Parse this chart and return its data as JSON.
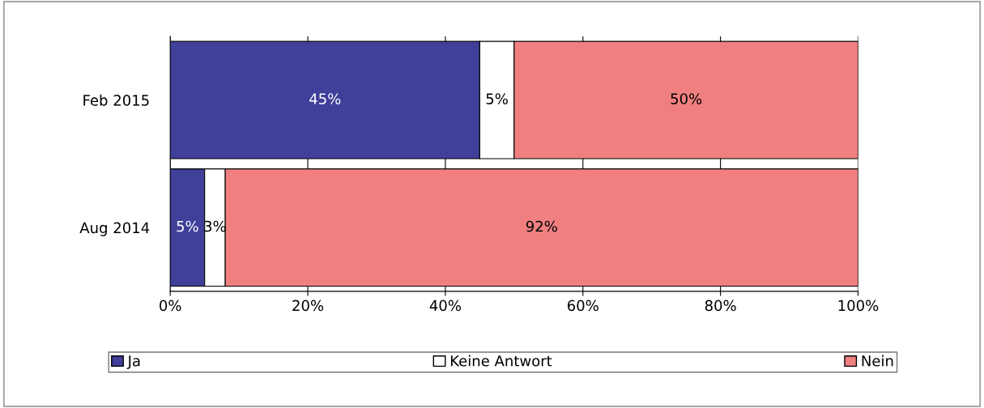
{
  "chart_data": {
    "type": "bar",
    "orientation": "horizontal",
    "stacked": true,
    "categories": [
      "Feb 2015",
      "Aug 2014"
    ],
    "series": [
      {
        "name": "Ja",
        "color": "#40409a",
        "values": [
          45,
          5
        ],
        "value_labels": [
          "45%",
          "5%"
        ]
      },
      {
        "name": "Keine Antwort",
        "color": "#ffffff",
        "values": [
          5,
          3
        ],
        "value_labels": [
          "5%",
          "3%"
        ]
      },
      {
        "name": "Nein",
        "color": "#f08080",
        "values": [
          50,
          92
        ],
        "value_labels": [
          "50%",
          "92%"
        ]
      }
    ],
    "xlim": [
      0,
      100
    ],
    "xticks": [
      {
        "value": 0,
        "label": "0%"
      },
      {
        "value": 20,
        "label": "20%"
      },
      {
        "value": 40,
        "label": "40%"
      },
      {
        "value": 60,
        "label": "60%"
      },
      {
        "value": 80,
        "label": "80%"
      },
      {
        "value": 100,
        "label": "100%"
      }
    ],
    "grid": "x",
    "legend": "bottom"
  }
}
